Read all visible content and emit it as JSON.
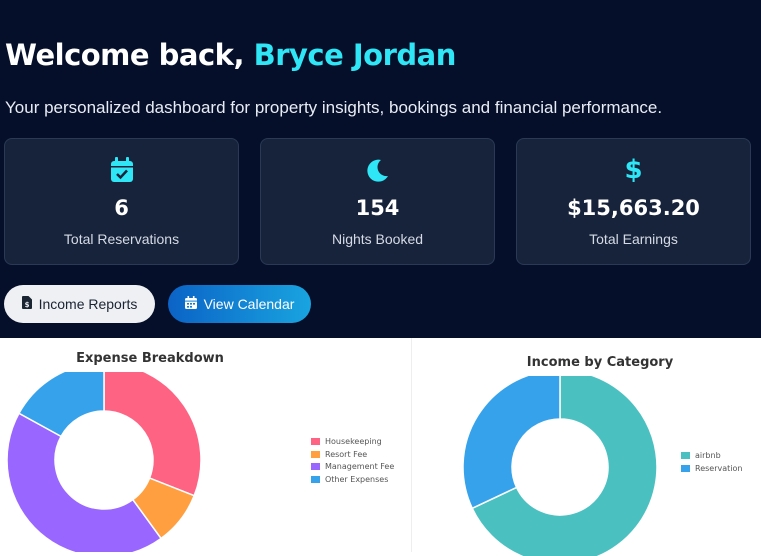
{
  "header": {
    "welcome_prefix": "Welcome back,",
    "user_name": "Bryce Jordan",
    "subtitle": "Your personalized dashboard for property insights, bookings and financial performance."
  },
  "stats": [
    {
      "icon": "calendar-check-icon",
      "value": "6",
      "label": "Total Reservations"
    },
    {
      "icon": "moon-icon",
      "value": "154",
      "label": "Nights Booked"
    },
    {
      "icon": "dollar-icon",
      "value": "$15,663.20",
      "label": "Total Earnings"
    }
  ],
  "actions": {
    "income_reports": "Income Reports",
    "view_calendar": "View Calendar"
  },
  "colors": {
    "accent_cyan": "#2ee6f5",
    "hero_bg": "#050f2a",
    "card_bg": "#17233b"
  },
  "chart_data": [
    {
      "type": "pie",
      "title": "Expense Breakdown",
      "donut": true,
      "legend_position": "right",
      "categories": [
        "Housekeeping",
        "Resort Fee",
        "Management Fee",
        "Other Expenses"
      ],
      "values": [
        31,
        9,
        43,
        17
      ],
      "colors": [
        "#ff6384",
        "#ff9f40",
        "#9966ff",
        "#36a2eb"
      ]
    },
    {
      "type": "pie",
      "title": "Income by Category",
      "donut": true,
      "legend_position": "right",
      "categories": [
        "airbnb",
        "Reservation"
      ],
      "values": [
        68,
        32
      ],
      "colors": [
        "#4bc0c0",
        "#36a2eb"
      ]
    }
  ]
}
